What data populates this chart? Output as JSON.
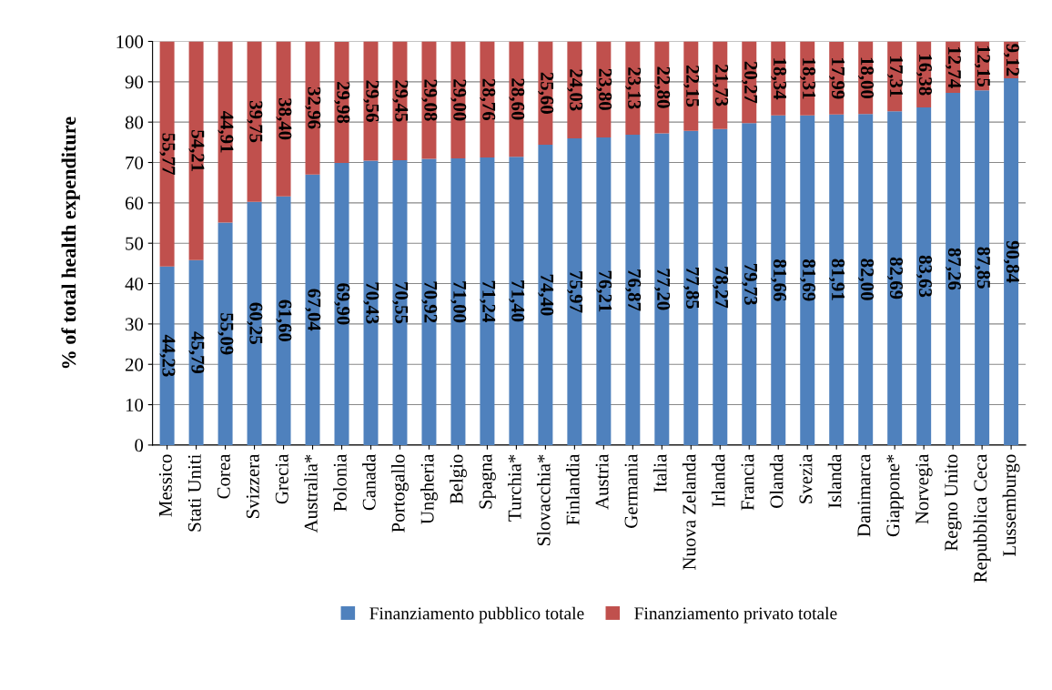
{
  "chart_data": {
    "type": "bar",
    "stacked": true,
    "ylabel": "% of total health expenditure",
    "categories": [
      "Messico",
      "Stati Uniti",
      "Corea",
      "Svizzera",
      "Grecia",
      "Australia*",
      "Polonia",
      "Canada",
      "Portogallo",
      "Ungheria",
      "Belgio",
      "Spagna",
      "Turchia*",
      "Slovacchia*",
      "Finlandia",
      "Austria",
      "Germania",
      "Italia",
      "Nuova Zelanda",
      "Irlanda",
      "Francia",
      "Olanda",
      "Svezia",
      "Islanda",
      "Danimarca",
      "Giappone*",
      "Norvegia",
      "Regno Unito",
      "Repubblica Ceca",
      "Lussemburgo"
    ],
    "series": [
      {
        "name": "Finanziamento pubblico totale",
        "color": "#4f81bd",
        "values": [
          44.23,
          45.79,
          55.09,
          60.25,
          61.6,
          67.04,
          69.9,
          70.43,
          70.55,
          70.92,
          71.0,
          71.24,
          71.4,
          74.4,
          75.97,
          76.21,
          76.87,
          77.2,
          77.85,
          78.27,
          79.73,
          81.66,
          81.69,
          81.91,
          82.0,
          82.69,
          83.63,
          87.26,
          87.85,
          90.84
        ],
        "value_labels": [
          "44,23",
          "45,79",
          "55,09",
          "60,25",
          "61,60",
          "67,04",
          "69,90",
          "70,43",
          "70,55",
          "70,92",
          "71,00",
          "71,24",
          "71,40",
          "74,40",
          "75,97",
          "76,21",
          "76,87",
          "77,20",
          "77,85",
          "78,27",
          "79,73",
          "81,66",
          "81,69",
          "81,91",
          "82,00",
          "82,69",
          "83,63",
          "87,26",
          "87,85",
          "90,84"
        ]
      },
      {
        "name": "Finanziamento privato totale",
        "color": "#c0504d",
        "values": [
          55.77,
          54.21,
          44.91,
          39.75,
          38.4,
          32.96,
          29.98,
          29.56,
          29.45,
          29.08,
          29.0,
          28.76,
          28.6,
          25.6,
          24.03,
          23.8,
          23.13,
          22.8,
          22.15,
          21.73,
          20.27,
          18.34,
          18.31,
          17.99,
          18.0,
          17.31,
          16.38,
          12.74,
          12.15,
          9.12
        ],
        "value_labels": [
          "55,77",
          "54,21",
          "44,91",
          "39,75",
          "38,40",
          "32,96",
          "29,98",
          "29,56",
          "29,45",
          "29,08",
          "29,00",
          "28,76",
          "28,60",
          "25,60",
          "24,03",
          "23,80",
          "23,13",
          "22,80",
          "22,15",
          "21,73",
          "20,27",
          "18,34",
          "18,31",
          "17,99",
          "18,00",
          "17,31",
          "16,38",
          "12,74",
          "12,15",
          "9,12"
        ]
      }
    ],
    "ylim": [
      0,
      100
    ],
    "yticks": [
      0,
      10,
      20,
      30,
      40,
      50,
      60,
      70,
      80,
      90,
      100
    ],
    "grid": "y",
    "legend": "bottom"
  }
}
